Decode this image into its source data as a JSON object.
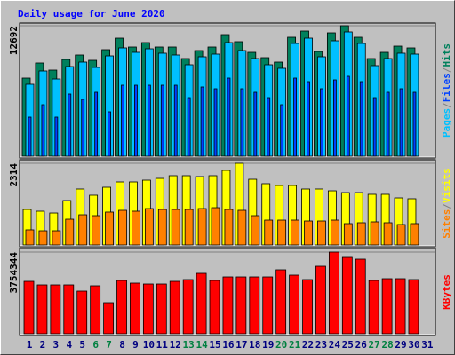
{
  "title": "Daily usage for June 2020",
  "legend_separator": "/",
  "chart_data": [
    {
      "type": "bar",
      "series": [
        {
          "name": "Hits",
          "color": "#00805c",
          "values": [
            7598,
            9066,
            8375,
            9411,
            9843,
            9325,
            10361,
            11483,
            10620,
            11052,
            10620,
            10620,
            9497,
            10275,
            10620,
            11829,
            11138,
            10102,
            9584,
            9152,
            11570,
            12174,
            10188,
            12001,
            12692,
            11570,
            9497,
            10102,
            10706,
            10534,
            null
          ]
        },
        {
          "name": "Files",
          "color": "#0040ff",
          "values": [
            3799,
            5008,
            3799,
            6044,
            5526,
            6217,
            4317,
            6907,
            6907,
            6907,
            6907,
            6907,
            5698,
            6735,
            6562,
            7598,
            6562,
            6217,
            5698,
            5008,
            7598,
            7253,
            6562,
            7425,
            7771,
            7253,
            5698,
            6217,
            6562,
            6217,
            null
          ]
        },
        {
          "name": "Pages",
          "color": "#00c0ff",
          "values": [
            6994,
            8289,
            7511,
            8720,
            9152,
            8634,
            9756,
            10534,
            10102,
            10447,
            10016,
            9843,
            8893,
            9670,
            9929,
            11052,
            10275,
            9497,
            8893,
            8548,
            10965,
            11483,
            9670,
            11224,
            12088,
            10965,
            8807,
            9497,
            10016,
            9929,
            null
          ]
        }
      ],
      "ylim": [
        0,
        12692
      ],
      "yticks": [
        12692
      ],
      "grid": true
    },
    {
      "type": "bar",
      "series": [
        {
          "name": "Visits",
          "color": "#ffff00",
          "values": [
            1006,
            956,
            905,
            1258,
            1585,
            1409,
            1635,
            1786,
            1786,
            1836,
            1886,
            1962,
            1962,
            1937,
            1962,
            2113,
            2314,
            1861,
            1736,
            1685,
            1685,
            1585,
            1585,
            1534,
            1484,
            1484,
            1434,
            1434,
            1333,
            1308,
            null
          ]
        },
        {
          "name": "Sites",
          "color": "#ff8000",
          "values": [
            428,
            402,
            402,
            729,
            855,
            830,
            931,
            981,
            956,
            1031,
            1006,
            1006,
            1006,
            1031,
            1056,
            1006,
            981,
            830,
            704,
            704,
            704,
            679,
            679,
            704,
            604,
            629,
            654,
            629,
            579,
            604,
            null
          ]
        }
      ],
      "ylim": [
        0,
        2314
      ],
      "yticks": [
        2314
      ],
      "grid": true
    },
    {
      "type": "bar",
      "categories": [
        "1",
        "2",
        "3",
        "4",
        "5",
        "6",
        "7",
        "8",
        "9",
        "10",
        "11",
        "12",
        "13",
        "14",
        "15",
        "16",
        "17",
        "18",
        "19",
        "20",
        "21",
        "22",
        "23",
        "24",
        "25",
        "26",
        "27",
        "28",
        "29",
        "30",
        "31"
      ],
      "category_colors": [
        "#000080",
        "#000080",
        "#000080",
        "#000080",
        "#000080",
        "#008040",
        "#008040",
        "#000080",
        "#000080",
        "#000080",
        "#000080",
        "#000080",
        "#008040",
        "#008040",
        "#000080",
        "#000080",
        "#000080",
        "#000080",
        "#000080",
        "#008040",
        "#008040",
        "#000080",
        "#000080",
        "#000080",
        "#000080",
        "#000080",
        "#008040",
        "#008040",
        "#000080",
        "#000080",
        "#000080"
      ],
      "series": [
        {
          "name": "KBytes",
          "color": "#ff0000",
          "values": [
            2407677,
            2244446,
            2244446,
            2244446,
            1958789,
            2203637,
            1428284,
            2448485,
            2326060,
            2285252,
            2285252,
            2407677,
            2489293,
            2774949,
            2448485,
            2611718,
            2611718,
            2611718,
            2611718,
            2938180,
            2693337,
            2489293,
            3101414,
            3754344,
            3509497,
            3427880,
            2448485,
            2530101,
            2530101,
            2489293,
            null
          ]
        }
      ],
      "ylim": [
        0,
        3754344
      ],
      "yticks": [
        3754344
      ],
      "grid": true
    }
  ]
}
